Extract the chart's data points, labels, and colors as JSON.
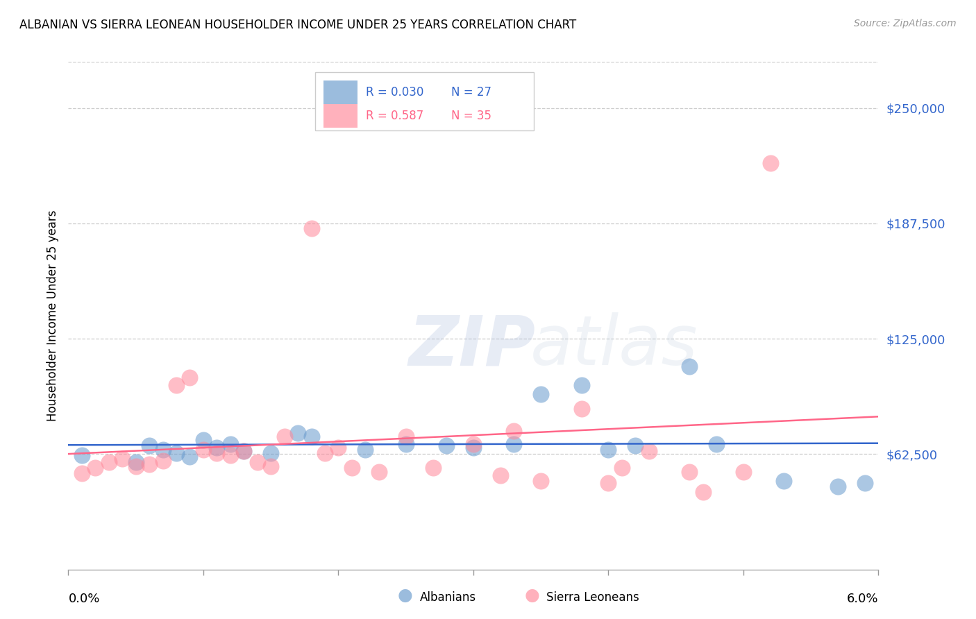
{
  "title": "ALBANIAN VS SIERRA LEONEAN HOUSEHOLDER INCOME UNDER 25 YEARS CORRELATION CHART",
  "source": "Source: ZipAtlas.com",
  "ylabel": "Householder Income Under 25 years",
  "ytick_labels": [
    "$250,000",
    "$187,500",
    "$125,000",
    "$62,500"
  ],
  "ytick_values": [
    250000,
    187500,
    125000,
    62500
  ],
  "ymin": 0,
  "ymax": 275000,
  "xmin": 0.0,
  "xmax": 0.06,
  "albanian_color": "#6699CC",
  "sierra_color": "#FF8899",
  "albanian_line_color": "#3366CC",
  "sierra_line_color": "#FF6688",
  "watermark_zip": "ZIP",
  "watermark_atlas": "atlas",
  "albanian_x": [
    0.001,
    0.005,
    0.006,
    0.007,
    0.008,
    0.009,
    0.01,
    0.011,
    0.012,
    0.013,
    0.015,
    0.017,
    0.018,
    0.022,
    0.025,
    0.028,
    0.03,
    0.033,
    0.035,
    0.038,
    0.04,
    0.042,
    0.046,
    0.048,
    0.053,
    0.057,
    0.059
  ],
  "albanian_y": [
    62000,
    58000,
    67000,
    65000,
    63000,
    61000,
    70000,
    66000,
    68000,
    64000,
    63000,
    74000,
    72000,
    65000,
    68000,
    67000,
    66000,
    68000,
    95000,
    100000,
    65000,
    67000,
    110000,
    68000,
    48000,
    45000,
    47000
  ],
  "sierra_x": [
    0.001,
    0.002,
    0.003,
    0.004,
    0.005,
    0.006,
    0.007,
    0.008,
    0.009,
    0.01,
    0.011,
    0.012,
    0.013,
    0.014,
    0.015,
    0.016,
    0.018,
    0.019,
    0.02,
    0.021,
    0.023,
    0.025,
    0.027,
    0.03,
    0.032,
    0.033,
    0.035,
    0.038,
    0.04,
    0.041,
    0.043,
    0.046,
    0.047,
    0.05,
    0.052
  ],
  "sierra_y": [
    52000,
    55000,
    58000,
    60000,
    56000,
    57000,
    59000,
    100000,
    104000,
    65000,
    63000,
    62000,
    64000,
    58000,
    56000,
    72000,
    185000,
    63000,
    66000,
    55000,
    53000,
    72000,
    55000,
    68000,
    51000,
    75000,
    48000,
    87000,
    47000,
    55000,
    64000,
    53000,
    42000,
    53000,
    220000
  ]
}
